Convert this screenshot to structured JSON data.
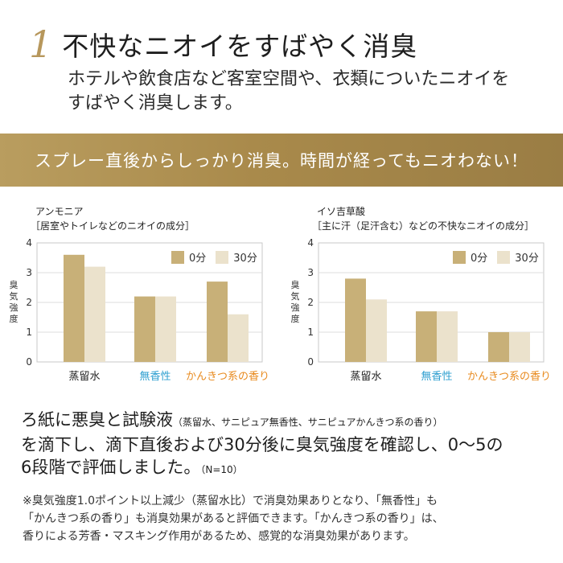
{
  "heading": {
    "number": "1",
    "title": "不快なニオイをすばやく消臭"
  },
  "intro": {
    "line1": "ホテルや飲食店など客室空間や、衣類についたニオイを",
    "line2": "すばやく消臭します。"
  },
  "banner": {
    "text": "スプレー直後からしっかり消臭。時間が経ってもニオわない！"
  },
  "colors": {
    "series_0": "#c8b078",
    "series_30": "#ebe2cc",
    "blue_label": "#2f9fd0",
    "orange_label": "#e88a1e",
    "accent": "#b7975c"
  },
  "y_axis_label": [
    "臭",
    "気",
    "強",
    "度"
  ],
  "chart_data": [
    {
      "type": "bar",
      "name": "アンモニア",
      "description": "［居室やトイレなどのニオイの成分］",
      "categories": [
        "蒸留水",
        "無香性",
        "かんきつ系の香り"
      ],
      "series": [
        {
          "name": "0分",
          "values": [
            3.6,
            2.2,
            2.7
          ]
        },
        {
          "name": "30分",
          "values": [
            3.2,
            2.2,
            1.6
          ]
        }
      ],
      "ylim": [
        0,
        4
      ],
      "yticks": [
        "0",
        "1",
        "2",
        "3",
        "4"
      ],
      "ylabel": "臭気強度",
      "legend_position": "top-right"
    },
    {
      "type": "bar",
      "name": "イソ吉草酸",
      "description": "［主に汗（足汗含む）などの不快なニオイの成分］",
      "categories": [
        "蒸留水",
        "無香性",
        "かんきつ系の香り"
      ],
      "series": [
        {
          "name": "0分",
          "values": [
            2.8,
            1.7,
            1.0
          ]
        },
        {
          "name": "30分",
          "values": [
            2.1,
            1.7,
            1.0
          ]
        }
      ],
      "ylim": [
        0,
        4
      ],
      "yticks": [
        "0",
        "1",
        "2",
        "3",
        "4"
      ],
      "ylabel": "臭気強度",
      "legend_position": "top-right"
    }
  ],
  "method": {
    "line1_main": "ろ紙に悪臭と試験液",
    "line1_small": "（蒸留水、サニピュア無香性、サニピュアかんきつ系の香り）",
    "line2": "を滴下し、滴下直後および30分後に臭気強度を確認し、0～5の",
    "line3_main": "6段階で評価しました。",
    "line3_small": "（N=10）"
  },
  "note": {
    "line1": "※臭気強度1.0ポイント以上減少（蒸留水比）で消臭効果ありとなり、「無香性」も",
    "line2": "「かんきつ系の香り」も消臭効果があると評価できます。「かんきつ系の香り」は、",
    "line3": "香りによる芳香・マスキング作用があるため、感覚的な消臭効果があります。"
  }
}
